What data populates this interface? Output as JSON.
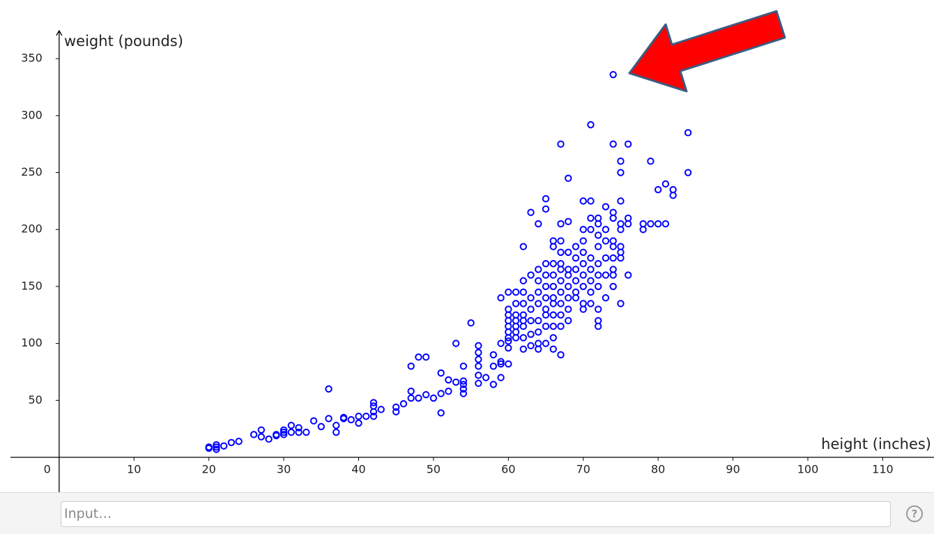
{
  "chart_data": {
    "type": "scatter",
    "x_label": "height (inches)",
    "y_label": "weight (pounds)",
    "xlim": [
      -7.9,
      116.85
    ],
    "ylim": [
      -30.6,
      401.5
    ],
    "xticks": [
      0,
      10,
      20,
      30,
      40,
      50,
      60,
      70,
      80,
      90,
      100,
      110
    ],
    "yticks": [
      50,
      100,
      150,
      200,
      250,
      300,
      350
    ],
    "grid": false,
    "color": "#0000ff",
    "x": [
      20,
      20,
      21,
      21,
      21,
      22,
      23,
      24,
      26,
      27,
      27,
      28,
      29,
      29,
      30,
      30,
      30,
      31,
      31,
      32,
      32,
      33,
      34,
      35,
      36,
      36,
      37,
      37,
      38,
      38,
      39,
      40,
      40,
      41,
      42,
      42,
      42,
      42,
      43,
      45,
      45,
      46,
      47,
      47,
      47,
      48,
      48,
      49,
      49,
      50,
      51,
      51,
      51,
      52,
      52,
      53,
      53,
      54,
      54,
      54,
      54,
      54,
      55,
      56,
      56,
      56,
      56,
      56,
      56,
      57,
      58,
      58,
      58,
      59,
      59,
      59,
      59,
      59,
      60,
      60,
      60,
      60,
      60,
      60,
      60,
      60,
      60,
      60,
      61,
      61,
      61,
      61,
      61,
      61,
      61,
      62,
      62,
      62,
      62,
      62,
      62,
      62,
      62,
      62,
      63,
      63,
      63,
      63,
      63,
      63,
      63,
      64,
      64,
      64,
      64,
      64,
      64,
      64,
      64,
      64,
      65,
      65,
      65,
      65,
      65,
      65,
      65,
      65,
      65,
      65,
      66,
      66,
      66,
      66,
      66,
      66,
      66,
      66,
      66,
      66,
      66,
      67,
      67,
      67,
      67,
      67,
      67,
      67,
      67,
      67,
      67,
      67,
      67,
      68,
      68,
      68,
      68,
      68,
      68,
      68,
      68,
      68,
      69,
      69,
      69,
      69,
      69,
      69,
      70,
      70,
      70,
      70,
      70,
      70,
      70,
      70,
      70,
      71,
      71,
      71,
      71,
      71,
      71,
      71,
      71,
      71,
      72,
      72,
      72,
      72,
      72,
      72,
      72,
      72,
      72,
      72,
      73,
      73,
      73,
      73,
      73,
      73,
      74,
      74,
      74,
      74,
      74,
      74,
      74,
      74,
      74,
      74,
      75,
      75,
      75,
      75,
      75,
      75,
      75,
      75,
      75,
      76,
      76,
      76,
      76,
      78,
      78,
      79,
      79,
      80,
      80,
      81,
      81,
      82,
      82,
      84,
      84
    ],
    "values": [
      8,
      9,
      7,
      11,
      9,
      10,
      13,
      14,
      20,
      24,
      18,
      16,
      19,
      20,
      22,
      20,
      24,
      22,
      28,
      22,
      26,
      22,
      32,
      27,
      34,
      60,
      22,
      28,
      34,
      35,
      33,
      30,
      36,
      36,
      36,
      40,
      45,
      48,
      42,
      40,
      44,
      47,
      52,
      80,
      58,
      52,
      88,
      88,
      55,
      52,
      39,
      56,
      74,
      58,
      68,
      66,
      100,
      56,
      80,
      60,
      67,
      64,
      118,
      65,
      72,
      80,
      86,
      92,
      98,
      70,
      64,
      80,
      90,
      70,
      82,
      84,
      100,
      140,
      82,
      96,
      102,
      105,
      110,
      115,
      120,
      125,
      130,
      145,
      105,
      110,
      115,
      120,
      125,
      135,
      145,
      95,
      105,
      115,
      120,
      125,
      135,
      145,
      155,
      185,
      98,
      108,
      120,
      130,
      140,
      160,
      215,
      95,
      100,
      110,
      120,
      135,
      145,
      155,
      165,
      205,
      100,
      115,
      125,
      130,
      140,
      150,
      160,
      170,
      218,
      227,
      95,
      105,
      115,
      125,
      135,
      140,
      150,
      160,
      170,
      185,
      190,
      90,
      115,
      125,
      135,
      145,
      155,
      165,
      170,
      180,
      190,
      205,
      275,
      120,
      130,
      140,
      150,
      160,
      165,
      180,
      207,
      245,
      140,
      145,
      155,
      165,
      175,
      185,
      130,
      135,
      150,
      160,
      170,
      180,
      190,
      200,
      225,
      135,
      145,
      155,
      165,
      175,
      200,
      210,
      225,
      292,
      115,
      120,
      130,
      150,
      160,
      170,
      185,
      195,
      205,
      210,
      140,
      160,
      175,
      190,
      200,
      220,
      150,
      160,
      165,
      175,
      185,
      190,
      210,
      215,
      275,
      336,
      135,
      175,
      180,
      185,
      200,
      205,
      225,
      250,
      260,
      160,
      205,
      210,
      275,
      200,
      205,
      205,
      260,
      205,
      235,
      205,
      240,
      230,
      235,
      250,
      285
    ]
  },
  "input": {
    "placeholder": "Input…",
    "help": "?"
  }
}
